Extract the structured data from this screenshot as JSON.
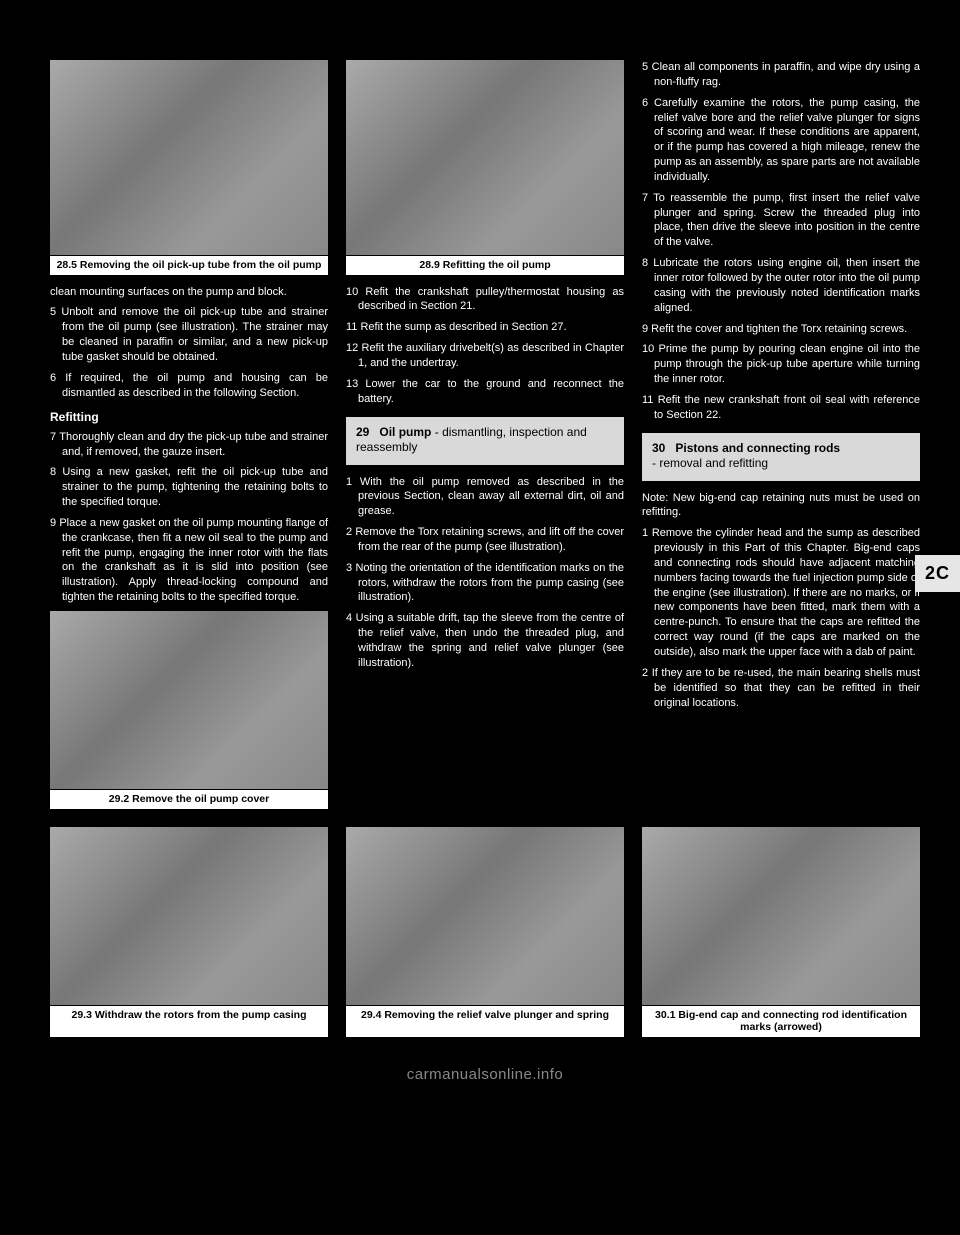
{
  "sideTab": "2C",
  "footer": "carmanualsonline.info",
  "figures": {
    "f285": {
      "caption": "28.5 Removing the oil pick-up tube from the oil pump"
    },
    "f289": {
      "caption": "28.9 Refitting the oil pump"
    },
    "f292": {
      "caption": "29.2 Remove the oil pump cover"
    },
    "f293": {
      "caption": "29.3 Withdraw the rotors from the pump casing"
    },
    "f294": {
      "caption": "29.4 Removing the relief valve plunger and spring"
    },
    "f301": {
      "caption": "30.1 Big-end cap and connecting rod identification marks (arrowed)"
    }
  },
  "sections": {
    "s29": {
      "num": "29",
      "title": "Oil pump",
      "sub": " - dismantling, inspection and reassembly"
    },
    "s30": {
      "num": "30",
      "title": "Pistons and connecting rods",
      "sub": "- removal and refitting"
    }
  },
  "text": {
    "c1a": "clean mounting surfaces on the pump and block.",
    "c1b": "5 Unbolt and remove the oil pick-up tube and strainer from the oil pump (see illustration). The strainer may be cleaned in paraffin or similar, and a new pick-up tube gasket should be obtained.",
    "c1c": "6 If required, the oil pump and housing can be dismantled as described in the following Section.",
    "c1h": "Refitting",
    "c1d": "7 Thoroughly clean and dry the pick-up tube and strainer and, if removed, the gauze insert.",
    "c1e": "8 Using a new gasket, refit the oil pick-up tube and strainer to the pump, tightening the retaining bolts to the specified torque.",
    "c1f": "9 Place a new gasket on the oil pump mounting flange of the crankcase, then fit a new oil seal to the pump and refit the pump, engaging the inner rotor with the flats on the crankshaft as it is slid into position (see illustration). Apply thread-locking compound and tighten the retaining bolts to the specified torque.",
    "c2a": "10 Refit the crankshaft pulley/thermostat housing as described in Section 21.",
    "c2b": "11 Refit the sump as described in Section 27.",
    "c2c": "12 Refit the auxiliary drivebelt(s) as described in Chapter 1, and the undertray.",
    "c2d": "13 Lower the car to the ground and reconnect the battery.",
    "c2e": "1 With the oil pump removed as described in the previous Section, clean away all external dirt, oil and grease.",
    "c2f": "2 Remove the Torx retaining screws, and lift off the cover from the rear of the pump (see illustration).",
    "c2g": "3 Noting the orientation of the identification marks on the rotors, withdraw the rotors from the pump casing (see illustration).",
    "c2h": "4 Using a suitable drift, tap the sleeve from the centre of the relief valve, then undo the threaded plug, and withdraw the spring and relief valve plunger (see illustration).",
    "c3a": "5 Clean all components in paraffin, and wipe dry using a non-fluffy rag.",
    "c3b": "6 Carefully examine the rotors, the pump casing, the relief valve bore and the relief valve plunger for signs of scoring and wear. If these conditions are apparent, or if the pump has covered a high mileage, renew the pump as an assembly, as spare parts are not available individually.",
    "c3c": "7 To reassemble the pump, first insert the relief valve plunger and spring. Screw the threaded plug into place, then drive the sleeve into position in the centre of the valve.",
    "c3d": "8 Lubricate the rotors using engine oil, then insert the inner rotor followed by the outer rotor into the oil pump casing with the previously noted identification marks aligned.",
    "c3e": "9 Refit the cover and tighten the Torx retaining screws.",
    "c3f": "10 Prime the pump by pouring clean engine oil into the pump through the pick-up tube aperture while turning the inner rotor.",
    "c3g": "11 Refit the new crankshaft front oil seal with reference to Section 22.",
    "c3h": "Note: New big-end cap retaining nuts must be used on refitting.",
    "c3i": "1 Remove the cylinder head and the sump as described previously in this Part of this Chapter. Big-end caps and connecting rods should have adjacent matching numbers facing towards the fuel injection pump side of the engine (see illustration). If there are no marks, or if new components have been fitted, mark them with a centre-punch. To ensure that the caps are refitted the correct way round (if the caps are marked on the outside), also mark the upper face with a dab of paint.",
    "c3j": "2 If they are to be re-used, the main bearing shells must be identified so that they can be refitted in their original locations."
  }
}
